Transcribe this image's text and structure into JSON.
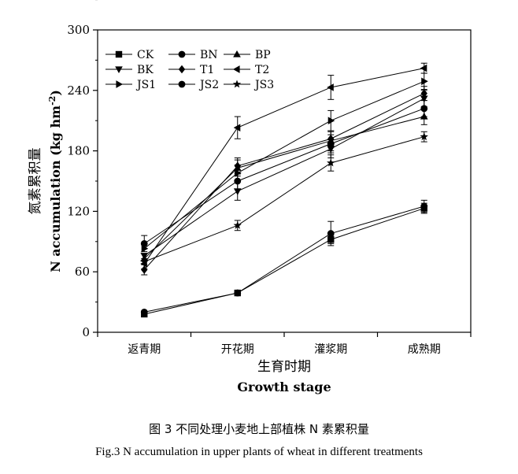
{
  "chart_data": {
    "type": "line",
    "categories": [
      "返青期",
      "开花期",
      "灌浆期",
      "成熟期"
    ],
    "xlabel_cn": "生育时期",
    "xlabel_en": "Growth stage",
    "ylabel_cn": "氮素累积量",
    "ylabel_en": "N accumulation (kg hm",
    "ylabel_sup": "-2",
    "ylabel_end": ")",
    "ylim": [
      0,
      300
    ],
    "yticks": [
      0,
      60,
      120,
      180,
      240,
      300
    ],
    "legend_placement": "top-left",
    "series": [
      {
        "name": "CK",
        "marker": "square",
        "values": [
          18,
          39,
          92,
          123
        ],
        "errors": [
          0,
          0,
          4,
          5
        ]
      },
      {
        "name": "BN",
        "marker": "circle",
        "values": [
          20,
          39,
          98,
          125
        ],
        "errors": [
          0,
          0,
          12,
          6
        ]
      },
      {
        "name": "BP",
        "marker": "triangle-up",
        "values": [
          73,
          163,
          190,
          214
        ],
        "errors": [
          0,
          8,
          10,
          8
        ]
      },
      {
        "name": "BK",
        "marker": "triangle-down",
        "values": [
          76,
          140,
          182,
          232
        ],
        "errors": [
          0,
          9,
          9,
          8
        ]
      },
      {
        "name": "T1",
        "marker": "diamond",
        "values": [
          62,
          165,
          192,
          237
        ],
        "errors": [
          5,
          8,
          7,
          7
        ]
      },
      {
        "name": "T2",
        "marker": "triangle-left",
        "values": [
          68,
          203,
          243,
          262
        ],
        "errors": [
          5,
          11,
          12,
          5
        ]
      },
      {
        "name": "JS1",
        "marker": "triangle-right",
        "values": [
          83,
          158,
          210,
          249
        ],
        "errors": [
          0,
          8,
          10,
          8
        ]
      },
      {
        "name": "JS2",
        "marker": "circle",
        "values": [
          88,
          150,
          187,
          222
        ],
        "errors": [
          8,
          8,
          9,
          8
        ]
      },
      {
        "name": "JS3",
        "marker": "star",
        "values": [
          70,
          106,
          168,
          194
        ],
        "errors": [
          0,
          5,
          8,
          5
        ]
      }
    ]
  },
  "caption": {
    "cn": "图 3  不同处理小麦地上部植株 N 素累积量",
    "en": "Fig.3 N accumulation in upper plants of wheat in different treatments"
  }
}
